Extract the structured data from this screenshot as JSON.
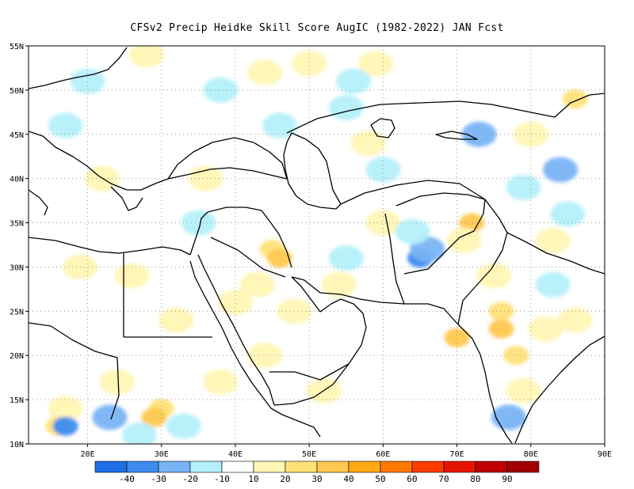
{
  "title": "CFSv2 Precip Heidke Skill Score AugIC (1982-2022) JAN Fcst",
  "map": {
    "lon_range": [
      12,
      90
    ],
    "lat_range": [
      10,
      55
    ],
    "lat_ticks": [
      "10N",
      "15N",
      "20N",
      "25N",
      "30N",
      "35N",
      "40N",
      "45N",
      "50N",
      "55N"
    ],
    "lon_ticks": [
      "20E",
      "30E",
      "40E",
      "50E",
      "60E",
      "70E",
      "80E",
      "90E"
    ],
    "grid": "dotted",
    "projection": "lat-lon"
  },
  "colorbar": {
    "colors": [
      "#1e6ee6",
      "#3c8cf0",
      "#78b4f5",
      "#b4f0fa",
      "#ffffff",
      "#fff5b4",
      "#ffe178",
      "#ffc850",
      "#ffaa14",
      "#ff7800",
      "#ff3c00",
      "#e61400",
      "#be0000",
      "#a00000"
    ],
    "labels": [
      "-40",
      "-30",
      "-20",
      "-10",
      "10",
      "20",
      "30",
      "40",
      "50",
      "60",
      "70",
      "80",
      "90"
    ]
  },
  "skill_blobs": [
    {
      "lon": 22,
      "lat": 40,
      "level": 20
    },
    {
      "lon": 45,
      "lat": 32,
      "level": 30
    },
    {
      "lon": 46,
      "lat": 31,
      "level": 40
    },
    {
      "lon": 43,
      "lat": 28,
      "level": 20
    },
    {
      "lon": 48,
      "lat": 25,
      "level": 20
    },
    {
      "lon": 40,
      "lat": 26,
      "level": 20
    },
    {
      "lon": 44,
      "lat": 20,
      "level": 20
    },
    {
      "lon": 38,
      "lat": 17,
      "level": 20
    },
    {
      "lon": 30,
      "lat": 14,
      "level": 30
    },
    {
      "lon": 29,
      "lat": 13,
      "level": 40
    },
    {
      "lon": 24,
      "lat": 17,
      "level": 20
    },
    {
      "lon": 17,
      "lat": 14,
      "level": 20
    },
    {
      "lon": 19,
      "lat": 30,
      "level": 20
    },
    {
      "lon": 26,
      "lat": 29,
      "level": 20
    },
    {
      "lon": 32,
      "lat": 24,
      "level": 20
    },
    {
      "lon": 72,
      "lat": 35,
      "level": 40
    },
    {
      "lon": 71,
      "lat": 33,
      "level": 20
    },
    {
      "lon": 75,
      "lat": 29,
      "level": 20
    },
    {
      "lon": 76,
      "lat": 25,
      "level": 30
    },
    {
      "lon": 78,
      "lat": 20,
      "level": 30
    },
    {
      "lon": 76,
      "lat": 23,
      "level": 40
    },
    {
      "lon": 70,
      "lat": 22,
      "level": 40
    },
    {
      "lon": 79,
      "lat": 16,
      "level": 20
    },
    {
      "lon": 86,
      "lat": 24,
      "level": 20
    },
    {
      "lon": 82,
      "lat": 23,
      "level": 20
    },
    {
      "lon": 60,
      "lat": 35,
      "level": 20
    },
    {
      "lon": 50,
      "lat": 53,
      "level": 20
    },
    {
      "lon": 59,
      "lat": 53,
      "level": 20
    },
    {
      "lon": 44,
      "lat": 52,
      "level": 20
    },
    {
      "lon": 28,
      "lat": 54,
      "level": 20
    },
    {
      "lon": 86,
      "lat": 49,
      "level": 30
    },
    {
      "lon": 80,
      "lat": 45,
      "level": 20
    },
    {
      "lon": 16,
      "lat": 12,
      "level": 30
    },
    {
      "lon": 54,
      "lat": 28,
      "level": 20
    },
    {
      "lon": 36,
      "lat": 40,
      "level": 20
    },
    {
      "lon": 58,
      "lat": 44,
      "level": 20
    },
    {
      "lon": 83,
      "lat": 33,
      "level": 20
    },
    {
      "lon": 52,
      "lat": 16,
      "level": 20
    },
    {
      "lon": 17,
      "lat": 12,
      "level": -30
    },
    {
      "lon": 23,
      "lat": 13,
      "level": -20
    },
    {
      "lon": 27,
      "lat": 11,
      "level": -10
    },
    {
      "lon": 33,
      "lat": 12,
      "level": -10
    },
    {
      "lon": 65,
      "lat": 31,
      "level": -30
    },
    {
      "lon": 66,
      "lat": 32,
      "level": -20
    },
    {
      "lon": 64,
      "lat": 34,
      "level": -10
    },
    {
      "lon": 77,
      "lat": 13,
      "level": -20
    },
    {
      "lon": 79,
      "lat": 39,
      "level": -10
    },
    {
      "lon": 85,
      "lat": 36,
      "level": -10
    },
    {
      "lon": 84,
      "lat": 41,
      "level": -20
    },
    {
      "lon": 73,
      "lat": 45,
      "level": -20
    },
    {
      "lon": 60,
      "lat": 41,
      "level": -10
    },
    {
      "lon": 55,
      "lat": 48,
      "level": -10
    },
    {
      "lon": 56,
      "lat": 51,
      "level": -10
    },
    {
      "lon": 20,
      "lat": 51,
      "level": -10
    },
    {
      "lon": 17,
      "lat": 46,
      "level": -10
    },
    {
      "lon": 38,
      "lat": 50,
      "level": -10
    },
    {
      "lon": 46,
      "lat": 46,
      "level": -10
    },
    {
      "lon": 55,
      "lat": 31,
      "level": -10
    },
    {
      "lon": 35,
      "lat": 35,
      "level": -10
    },
    {
      "lon": 83,
      "lat": 28,
      "level": -10
    }
  ]
}
